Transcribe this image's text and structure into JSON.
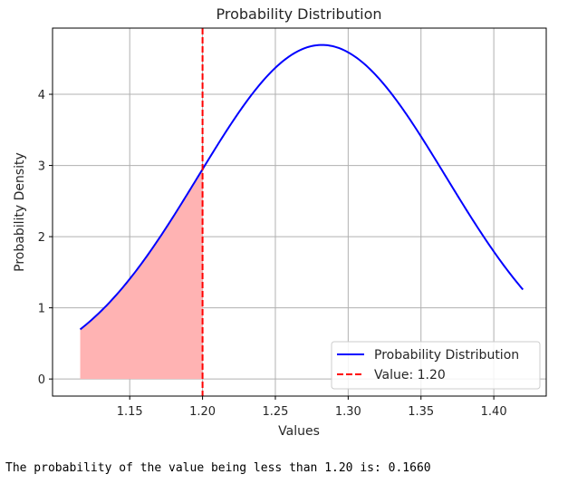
{
  "chart_data": {
    "type": "line",
    "title": "Probability Distribution",
    "xlabel": "Values",
    "ylabel": "Probability Density",
    "xlim": [
      1.097,
      1.436
    ],
    "ylim": [
      -0.24,
      4.93
    ],
    "xticks": [
      "1.15",
      "1.20",
      "1.25",
      "1.30",
      "1.35",
      "1.40"
    ],
    "yticks": [
      "0",
      "1",
      "2",
      "3",
      "4"
    ],
    "grid": true,
    "legend_position": "lower-right",
    "series": [
      {
        "name": "Probability Distribution",
        "kind": "normal_pdf_curve",
        "mean": 1.282,
        "std": 0.085,
        "x_range": [
          1.116,
          1.42
        ],
        "color": "#0000ff"
      }
    ],
    "threshold": {
      "name": "Value: 1.20",
      "x": 1.2,
      "color": "#ff0000",
      "style": "dashed"
    },
    "shaded_region": {
      "x_range": [
        1.116,
        1.2
      ],
      "color": "#ffb3b3"
    }
  },
  "output": {
    "text": "The probability of the value being less than 1.20 is: 0.1660"
  }
}
